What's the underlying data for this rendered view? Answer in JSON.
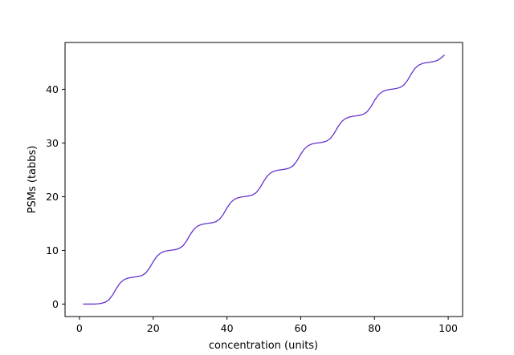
{
  "chart_data": {
    "type": "line",
    "title": "",
    "xlabel": "concentration (units)",
    "ylabel": "PSMs (tabbs)",
    "xlim": [
      -3.9,
      103.9
    ],
    "ylim": [
      -2.32,
      48.72
    ],
    "xticks": [
      0,
      20,
      40,
      60,
      80,
      100
    ],
    "yticks": [
      0,
      10,
      20,
      30,
      40
    ],
    "grid": false,
    "legend": "none",
    "colors": {
      "line": "#6633cc"
    },
    "series": [
      {
        "x": [
          1,
          2,
          3,
          4,
          5,
          6,
          7,
          8,
          9,
          10,
          11,
          12,
          13,
          14,
          15,
          16,
          17,
          18,
          19,
          20,
          21,
          22,
          23,
          24,
          25,
          26,
          27,
          28,
          29,
          30,
          31,
          32,
          33,
          34,
          35,
          36,
          37,
          38,
          39,
          40,
          41,
          42,
          43,
          44,
          45,
          46,
          47,
          48,
          49,
          50,
          51,
          52,
          53,
          54,
          55,
          56,
          57,
          58,
          59,
          60,
          61,
          62,
          63,
          64,
          65,
          66,
          67,
          68,
          69,
          70,
          71,
          72,
          73,
          74,
          75,
          76,
          77,
          78,
          79,
          80,
          81,
          82,
          83,
          84,
          85,
          86,
          87,
          88,
          89,
          90,
          91,
          92,
          93,
          94,
          95,
          96,
          97,
          98,
          99
        ],
        "y": [
          0,
          0,
          0,
          0,
          0.05,
          0.15,
          0.35,
          0.8,
          1.7,
          2.9,
          3.9,
          4.5,
          4.8,
          4.95,
          5.05,
          5.15,
          5.35,
          5.8,
          6.7,
          7.9,
          8.9,
          9.5,
          9.8,
          9.95,
          10.05,
          10.15,
          10.35,
          10.8,
          11.7,
          12.9,
          13.9,
          14.5,
          14.8,
          14.95,
          15.05,
          15.15,
          15.35,
          15.8,
          16.7,
          17.9,
          18.9,
          19.5,
          19.8,
          19.95,
          20.05,
          20.15,
          20.35,
          20.8,
          21.7,
          22.9,
          23.9,
          24.5,
          24.8,
          24.95,
          25.05,
          25.15,
          25.35,
          25.8,
          26.7,
          27.9,
          28.9,
          29.5,
          29.8,
          29.95,
          30.05,
          30.15,
          30.35,
          30.8,
          31.7,
          32.9,
          33.9,
          34.5,
          34.8,
          34.95,
          35.05,
          35.15,
          35.35,
          35.8,
          36.7,
          37.9,
          38.9,
          39.5,
          39.8,
          39.95,
          40.05,
          40.15,
          40.35,
          40.8,
          41.7,
          42.9,
          43.9,
          44.5,
          44.8,
          44.95,
          45.05,
          45.15,
          45.35,
          45.8,
          46.4
        ]
      }
    ]
  }
}
